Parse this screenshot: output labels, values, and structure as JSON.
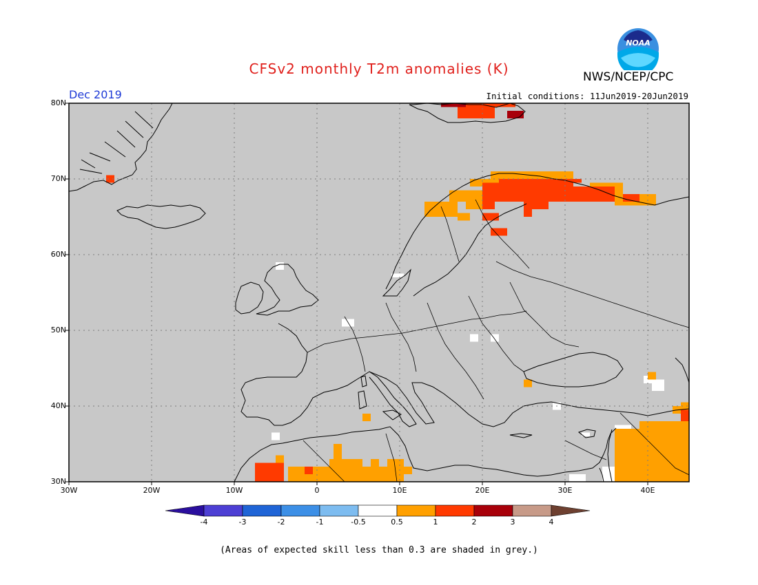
{
  "header": {
    "title": "CFSv2 monthly T2m anomalies (K)",
    "organization": "NWS/NCEP/CPC",
    "logo_text": "NOAA",
    "month": "Dec 2019",
    "initial_conditions": "Initial conditions: 11Jun2019-20Jun2019"
  },
  "axes": {
    "lat_labels": [
      "80N",
      "70N",
      "60N",
      "50N",
      "40N",
      "30N"
    ],
    "lon_labels": [
      "30W",
      "20W",
      "10W",
      "0",
      "10E",
      "20E",
      "30E",
      "40E"
    ]
  },
  "colorbar": {
    "labels": [
      "-4",
      "-3",
      "-2",
      "-1",
      "-0.5",
      "0.5",
      "1",
      "2",
      "3",
      "4"
    ],
    "colors": [
      "#2a0e9e",
      "#4d3fd4",
      "#1f64d6",
      "#3c8fe6",
      "#7dbcf0",
      "#ffffff",
      "#ffa000",
      "#ff3a00",
      "#a8000a",
      "#c79a88",
      "#6e4030"
    ]
  },
  "footnote": "(Areas of expected skill less than 0.3 are shaded in grey.)",
  "chart_data": {
    "type": "heatmap",
    "title": "CFSv2 monthly T2m anomalies (K)",
    "lon_range": [
      -30,
      45
    ],
    "lat_range": [
      30,
      80
    ],
    "categories": [
      "-4",
      "-3",
      "-2",
      "-1",
      "-0.5",
      "0.5",
      "1",
      "2",
      "3",
      "4"
    ],
    "cells": [
      {
        "lon": 15.0,
        "lat": 79.5,
        "lon2": 18.0,
        "lat2": 80.0,
        "cls": "2-3"
      },
      {
        "lon": 17.0,
        "lat": 78.0,
        "lon2": 21.5,
        "lat2": 80.0,
        "cls": "1-2"
      },
      {
        "lon": 21.5,
        "lat": 79.5,
        "lon2": 24.0,
        "lat2": 80.0,
        "cls": "1-2"
      },
      {
        "lon": 23.0,
        "lat": 78.0,
        "lon2": 25.0,
        "lat2": 79.0,
        "cls": "2-3"
      },
      {
        "lon": -25.5,
        "lat": 69.5,
        "lon2": -24.5,
        "lat2": 70.5,
        "cls": "1-2"
      },
      {
        "lon": 21.0,
        "lat": 70.0,
        "lon2": 31.0,
        "lat2": 71.0,
        "cls": "0.5-1"
      },
      {
        "lon": 18.5,
        "lat": 69.0,
        "lon2": 22.0,
        "lat2": 70.0,
        "cls": "0.5-1"
      },
      {
        "lon": 22.0,
        "lat": 69.5,
        "lon2": 32.0,
        "lat2": 70.0,
        "cls": "1-2"
      },
      {
        "lon": 20.0,
        "lat": 67.0,
        "lon2": 31.0,
        "lat2": 69.5,
        "cls": "1-2"
      },
      {
        "lon": 25.0,
        "lat": 66.0,
        "lon2": 28.0,
        "lat2": 67.0,
        "cls": "1-2"
      },
      {
        "lon": 25.0,
        "lat": 65.0,
        "lon2": 26.0,
        "lat2": 66.0,
        "cls": "1-2"
      },
      {
        "lon": 31.0,
        "lat": 67.0,
        "lon2": 36.0,
        "lat2": 69.0,
        "cls": "1-2"
      },
      {
        "lon": 33.0,
        "lat": 67.0,
        "lon2": 37.0,
        "lat2": 69.5,
        "cls": "0.5-1"
      },
      {
        "lon": 37.0,
        "lat": 67.0,
        "lon2": 39.0,
        "lat2": 68.0,
        "cls": "1-2"
      },
      {
        "lon": 36.0,
        "lat": 66.5,
        "lon2": 41.0,
        "lat2": 68.0,
        "cls": "0.5-1"
      },
      {
        "lon": 16.0,
        "lat": 67.0,
        "lon2": 20.0,
        "lat2": 68.5,
        "cls": "0.5-1"
      },
      {
        "lon": 13.0,
        "lat": 65.0,
        "lon2": 17.0,
        "lat2": 67.0,
        "cls": "0.5-1"
      },
      {
        "lon": 18.0,
        "lat": 66.0,
        "lon2": 21.0,
        "lat2": 67.0,
        "cls": "0.5-1"
      },
      {
        "lon": 20.0,
        "lat": 66.0,
        "lon2": 21.5,
        "lat2": 67.0,
        "cls": "1-2"
      },
      {
        "lon": 17.0,
        "lat": 64.5,
        "lon2": 18.5,
        "lat2": 65.5,
        "cls": "0.5-1"
      },
      {
        "lon": 20.0,
        "lat": 64.5,
        "lon2": 22.0,
        "lat2": 65.5,
        "cls": "1-2"
      },
      {
        "lon": 21.0,
        "lat": 62.5,
        "lon2": 23.0,
        "lat2": 63.5,
        "cls": "1-2"
      },
      {
        "lon": 5.5,
        "lat": 38.0,
        "lon2": 6.5,
        "lat2": 39.0,
        "cls": "0.5-1"
      },
      {
        "lon": -7.5,
        "lat": 30.0,
        "lon2": -4.0,
        "lat2": 32.5,
        "cls": "1-2"
      },
      {
        "lon": -5.0,
        "lat": 32.5,
        "lon2": -4.0,
        "lat2": 33.5,
        "cls": "0.5-1"
      },
      {
        "lon": -3.5,
        "lat": 30.0,
        "lon2": 8.5,
        "lat2": 32.0,
        "cls": "0.5-1"
      },
      {
        "lon": 1.5,
        "lat": 32.0,
        "lon2": 5.5,
        "lat2": 33.0,
        "cls": "0.5-1"
      },
      {
        "lon": 2.0,
        "lat": 33.0,
        "lon2": 3.0,
        "lat2": 35.0,
        "cls": "0.5-1"
      },
      {
        "lon": 6.5,
        "lat": 32.0,
        "lon2": 7.5,
        "lat2": 33.0,
        "cls": "0.5-1"
      },
      {
        "lon": 8.5,
        "lat": 30.0,
        "lon2": 10.5,
        "lat2": 33.0,
        "cls": "0.5-1"
      },
      {
        "lon": 10.5,
        "lat": 31.0,
        "lon2": 11.5,
        "lat2": 32.0,
        "cls": "0.5-1"
      },
      {
        "lon": -1.5,
        "lat": 31.0,
        "lon2": -0.5,
        "lat2": 32.0,
        "cls": "1-2"
      },
      {
        "lon": 25.0,
        "lat": 42.5,
        "lon2": 26.0,
        "lat2": 43.5,
        "cls": "0.5-1"
      },
      {
        "lon": 36.0,
        "lat": 30.0,
        "lon2": 41.0,
        "lat2": 37.0,
        "cls": "0.5-1"
      },
      {
        "lon": 39.0,
        "lat": 31.0,
        "lon2": 45.0,
        "lat2": 38.0,
        "cls": "0.5-1"
      },
      {
        "lon": 41.0,
        "lat": 30.0,
        "lon2": 45.0,
        "lat2": 33.0,
        "cls": "0.5-1"
      },
      {
        "lon": 44.0,
        "lat": 37.0,
        "lon2": 45.0,
        "lat2": 40.5,
        "cls": "0.5-1"
      },
      {
        "lon": 43.0,
        "lat": 39.0,
        "lon2": 45.0,
        "lat2": 40.0,
        "cls": "0.5-1"
      },
      {
        "lon": 40.0,
        "lat": 43.5,
        "lon2": 41.0,
        "lat2": 44.5,
        "cls": "0.5-1"
      },
      {
        "lon": 44.0,
        "lat": 38.5,
        "lon2": 45.0,
        "lat2": 39.5,
        "cls": "1-2"
      },
      {
        "lon": 44.0,
        "lat": 38.0,
        "lon2": 45.0,
        "lat2": 39.0,
        "cls": "1-2"
      },
      {
        "lon": 36.0,
        "lat": 35.5,
        "lon2": 37.5,
        "lat2": 37.0,
        "cls": "0.5-1"
      },
      {
        "lon": 40.5,
        "lat": 42.0,
        "lon2": 42.0,
        "lat2": 43.5,
        "cls": "-0.5-0.5"
      },
      {
        "lon": 39.5,
        "lat": 43.0,
        "lon2": 41.0,
        "lat2": 44.0,
        "cls": "-0.5-0.5"
      },
      {
        "lon": 28.5,
        "lat": 39.5,
        "lon2": 29.5,
        "lat2": 40.5,
        "cls": "-0.5-0.5"
      },
      {
        "lon": 32.0,
        "lat": 36.0,
        "lon2": 33.0,
        "lat2": 36.5,
        "cls": "-0.5-0.5"
      },
      {
        "lon": 36.0,
        "lat": 36.5,
        "lon2": 38.0,
        "lat2": 37.5,
        "cls": "-0.5-0.5"
      },
      {
        "lon": 36.0,
        "lat": 33.0,
        "lon2": 37.5,
        "lat2": 35.0,
        "cls": "-0.5-0.5"
      },
      {
        "lon": 34.5,
        "lat": 30.0,
        "lon2": 36.5,
        "lat2": 32.0,
        "cls": "-0.5-0.5"
      },
      {
        "lon": 30.5,
        "lat": 30.0,
        "lon2": 32.5,
        "lat2": 31.0,
        "cls": "-0.5-0.5"
      },
      {
        "lon": 38.0,
        "lat": 30.5,
        "lon2": 39.0,
        "lat2": 31.5,
        "cls": "-0.5-0.5"
      },
      {
        "lon": 18.5,
        "lat": 48.5,
        "lon2": 19.5,
        "lat2": 49.5,
        "cls": "-0.5-0.5"
      },
      {
        "lon": 21.0,
        "lat": 48.5,
        "lon2": 22.0,
        "lat2": 49.5,
        "cls": "-0.5-0.5"
      },
      {
        "lon": 3.0,
        "lat": 50.5,
        "lon2": 4.5,
        "lat2": 51.5,
        "cls": "-0.5-0.5"
      },
      {
        "lon": -5.0,
        "lat": 58.0,
        "lon2": -4.0,
        "lat2": 59.0,
        "cls": "-0.5-0.5"
      },
      {
        "lon": 9.0,
        "lat": 57.0,
        "lon2": 10.5,
        "lat2": 57.5,
        "cls": "-0.5-0.5"
      },
      {
        "lon": -5.5,
        "lat": 35.5,
        "lon2": -4.5,
        "lat2": 36.5,
        "cls": "-0.5-0.5"
      }
    ]
  }
}
